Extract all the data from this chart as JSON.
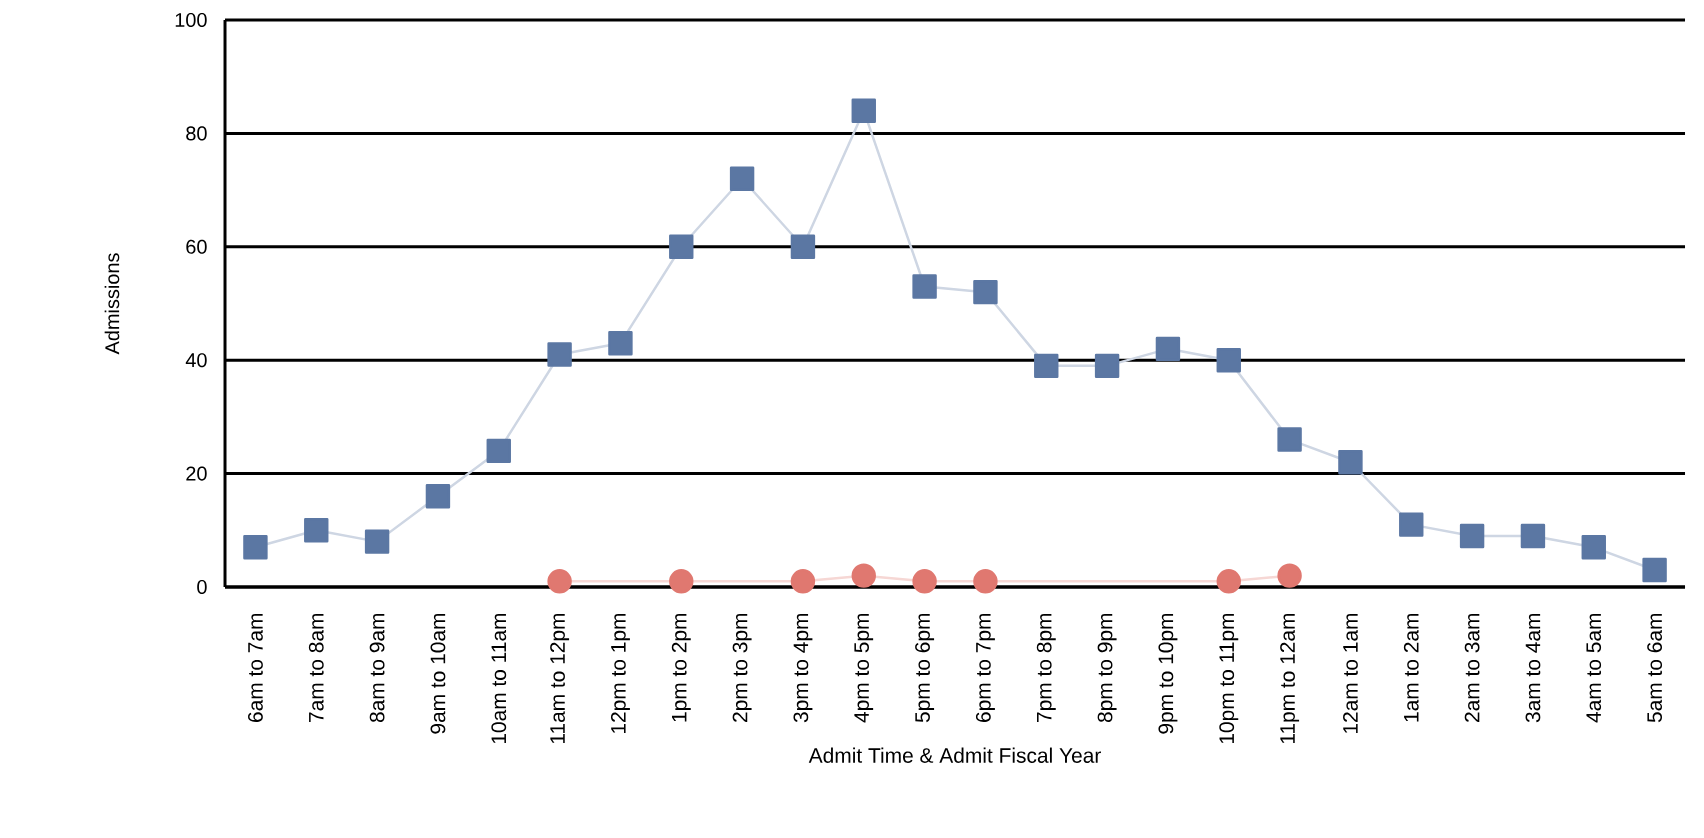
{
  "chart_data": {
    "type": "line",
    "xlabel": "Admit Time & Admit Fiscal Year",
    "ylabel": "Admissions",
    "categories": [
      "6am to 7am",
      "7am to 8am",
      "8am to 9am",
      "9am to 10am",
      "10am to 11am",
      "11am to 12pm",
      "12pm to 1pm",
      "1pm to 2pm",
      "2pm to 3pm",
      "3pm to 4pm",
      "4pm to 5pm",
      "5pm to 6pm",
      "6pm to 7pm",
      "7pm to 8pm",
      "8pm to 9pm",
      "9pm to 10pm",
      "10pm to 11pm",
      "11pm to 12am",
      "12am to 1am",
      "1am to 2am",
      "2am to 3am",
      "3am to 4am",
      "4am to 5am",
      "5am to 6am"
    ],
    "series": [
      {
        "color": "#5b77a3",
        "marker": "square",
        "values": [
          7,
          10,
          8,
          16,
          24,
          41,
          43,
          60,
          72,
          60,
          84,
          53,
          52,
          39,
          39,
          42,
          40,
          26,
          22,
          11,
          9,
          9,
          7,
          3
        ]
      },
      {
        "color": "#e07870",
        "marker": "circle",
        "values": [
          null,
          null,
          null,
          null,
          null,
          1,
          null,
          1,
          null,
          1,
          2,
          1,
          1,
          null,
          null,
          null,
          1,
          2,
          null,
          null,
          null,
          null,
          null,
          null
        ]
      }
    ],
    "ylim": [
      0,
      100
    ],
    "yticks": [
      0,
      20,
      40,
      60,
      80,
      100
    ],
    "grid": "y"
  }
}
